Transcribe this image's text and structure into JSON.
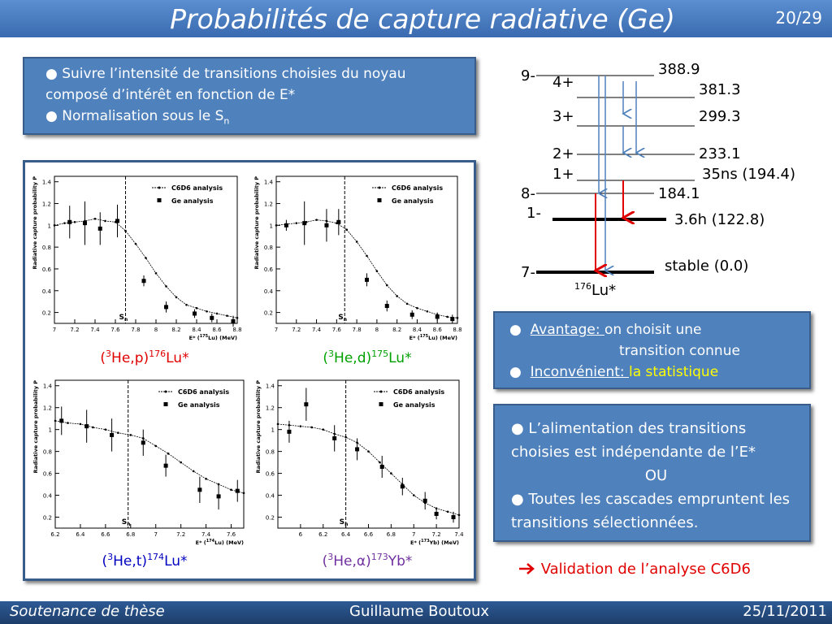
{
  "header": {
    "title": "Probabilités de capture radiative (Ge)",
    "page": "20/29"
  },
  "intro": {
    "line1": "● Suivre l’intensité de transitions choisies du noyau composé d’intérêt en fonction de E*",
    "line2": "● Normalisation sous le S",
    "line2_sub": "n"
  },
  "level_scheme": {
    "levels": [
      {
        "spin": "9-",
        "energy": "388.9"
      },
      {
        "spin": "4+",
        "energy": "381.3"
      },
      {
        "spin": "3+",
        "energy": "299.3"
      },
      {
        "spin": "2+",
        "energy": "233.1"
      },
      {
        "spin": "1+",
        "energy": "35ns (194.4)"
      },
      {
        "spin": "8-",
        "energy": "184.1"
      },
      {
        "spin": "1-",
        "energy": "3.6h (122.8)"
      },
      {
        "spin": "7-",
        "energy": "stable (0.0)"
      }
    ],
    "nucleus_mass": "176",
    "nucleus": "Lu*"
  },
  "plots": [
    {
      "reaction": {
        "open": "(",
        "mass1": "3",
        "projectile": "He,p)",
        "mass2": "176",
        "nucleus": "Lu*"
      },
      "color": "#e00000",
      "legend": [
        "C6D6 analysis",
        "Ge analysis"
      ],
      "y_label": "Radiative capture probability P",
      "x_label_pre": "E* (",
      "x_label_mass": "175",
      "x_label_post": "Lu) (MeV)",
      "sn_label": "S",
      "sn_sub": "n",
      "sn": 7.7,
      "xlim": [
        7,
        8.8
      ],
      "xticks": [
        7,
        7.2,
        7.4,
        7.6,
        7.8,
        8,
        8.2,
        8.4,
        8.6,
        8.8
      ],
      "ylim": [
        0.1,
        1.45
      ],
      "yticks": [
        0.2,
        0.4,
        0.6,
        0.8,
        1,
        1.2,
        1.4
      ],
      "c6d6": {
        "x": [
          7,
          7.1,
          7.2,
          7.3,
          7.4,
          7.5,
          7.6,
          7.7,
          7.8,
          7.9,
          8,
          8.1,
          8.2,
          8.3,
          8.4,
          8.5,
          8.6,
          8.7,
          8.8
        ],
        "values": [
          1.0,
          1.02,
          1.03,
          1.04,
          1.06,
          1.04,
          1.03,
          0.95,
          0.83,
          0.7,
          0.56,
          0.44,
          0.34,
          0.27,
          0.24,
          0.21,
          0.19,
          0.17,
          0.15
        ]
      },
      "ge": {
        "x": [
          7.15,
          7.3,
          7.45,
          7.62,
          7.88,
          8.1,
          8.38,
          8.55,
          8.76
        ],
        "values": [
          1.03,
          1.02,
          0.97,
          1.04,
          0.49,
          0.25,
          0.19,
          0.15,
          0.12
        ],
        "errors": [
          0.15,
          0.2,
          0.15,
          0.15,
          0.05,
          0.05,
          0.04,
          0.04,
          0.05
        ]
      }
    },
    {
      "reaction": {
        "open": "(",
        "mass1": "3",
        "projectile": "He,d)",
        "mass2": "175",
        "nucleus": "Lu*"
      },
      "color": "#00a000",
      "legend": [
        "C6D6 analysis",
        "Ge analysis"
      ],
      "y_label": "Radiative capture probability P",
      "x_label_pre": "E* (",
      "x_label_mass": "175",
      "x_label_post": "Lu) (MeV)",
      "sn_label": "S",
      "sn_sub": "n",
      "sn": 7.68,
      "xlim": [
        7,
        8.8
      ],
      "xticks": [
        7,
        7.2,
        7.4,
        7.6,
        7.8,
        8,
        8.2,
        8.4,
        8.6,
        8.8
      ],
      "ylim": [
        0.1,
        1.45
      ],
      "yticks": [
        0.2,
        0.4,
        0.6,
        0.8,
        1,
        1.2,
        1.4
      ],
      "c6d6": {
        "x": [
          7,
          7.1,
          7.2,
          7.3,
          7.4,
          7.5,
          7.6,
          7.7,
          7.8,
          7.9,
          8,
          8.1,
          8.2,
          8.3,
          8.4,
          8.5,
          8.6,
          8.7,
          8.8
        ],
        "values": [
          1.0,
          1.01,
          1.02,
          1.03,
          1.05,
          1.04,
          1.02,
          0.96,
          0.85,
          0.72,
          0.58,
          0.45,
          0.35,
          0.28,
          0.24,
          0.21,
          0.18,
          0.16,
          0.15
        ]
      },
      "ge": {
        "x": [
          7.1,
          7.28,
          7.5,
          7.62,
          7.9,
          8.1,
          8.35,
          8.6,
          8.75
        ],
        "values": [
          1.0,
          1.02,
          1.0,
          1.03,
          0.5,
          0.26,
          0.18,
          0.16,
          0.14
        ],
        "errors": [
          0.05,
          0.2,
          0.15,
          0.12,
          0.06,
          0.05,
          0.04,
          0.04,
          0.04
        ]
      }
    },
    {
      "reaction": {
        "open": "(",
        "mass1": "3",
        "projectile": "He,t)",
        "mass2": "174",
        "nucleus": "Lu*"
      },
      "color": "#0000c0",
      "legend": [
        "C6D6 analysis",
        "Ge analysis"
      ],
      "y_label": "Radiative capture probability P",
      "x_label_pre": "E* (",
      "x_label_mass": "174",
      "x_label_post": "Lu) (MeV)",
      "sn_label": "S",
      "sn_sub": "n",
      "sn": 6.78,
      "xlim": [
        6.2,
        7.7
      ],
      "xticks": [
        6.2,
        6.4,
        6.6,
        6.8,
        7,
        7.2,
        7.4,
        7.6
      ],
      "ylim": [
        0.1,
        1.45
      ],
      "yticks": [
        0.2,
        0.4,
        0.6,
        0.8,
        1,
        1.2,
        1.4
      ],
      "c6d6": {
        "x": [
          6.2,
          6.3,
          6.4,
          6.5,
          6.6,
          6.7,
          6.8,
          6.9,
          7,
          7.1,
          7.2,
          7.3,
          7.4,
          7.5,
          7.6,
          7.7
        ],
        "values": [
          1.08,
          1.06,
          1.05,
          1.02,
          1.0,
          0.97,
          0.95,
          0.92,
          0.85,
          0.78,
          0.7,
          0.62,
          0.55,
          0.5,
          0.45,
          0.42
        ]
      },
      "ge": {
        "x": [
          6.25,
          6.45,
          6.65,
          6.9,
          7.08,
          7.35,
          7.5,
          7.65
        ],
        "values": [
          1.08,
          1.03,
          0.95,
          0.88,
          0.67,
          0.45,
          0.39,
          0.44
        ],
        "errors": [
          0.13,
          0.15,
          0.15,
          0.12,
          0.1,
          0.12,
          0.12,
          0.1
        ]
      }
    },
    {
      "reaction": {
        "open": "(",
        "mass1": "3",
        "projectile": "He,α)",
        "mass2": "173",
        "nucleus": "Yb*"
      },
      "color": "#7030a0",
      "legend": [
        "C6D6 analysis",
        "Ge analysis"
      ],
      "y_label": "Radiative capture probability P",
      "x_label_pre": "E* (",
      "x_label_mass": "173",
      "x_label_post": "Yb) (MeV)",
      "sn_label": "S",
      "sn_sub": "n",
      "sn": 6.4,
      "xlim": [
        5.8,
        7.4
      ],
      "xticks": [
        6,
        6.2,
        6.4,
        6.6,
        6.8,
        7,
        7.2,
        7.4
      ],
      "ylim": [
        0.1,
        1.45
      ],
      "yticks": [
        0.2,
        0.4,
        0.6,
        0.8,
        1,
        1.2,
        1.4
      ],
      "c6d6": {
        "x": [
          5.8,
          5.9,
          6,
          6.1,
          6.2,
          6.3,
          6.4,
          6.5,
          6.6,
          6.7,
          6.8,
          6.9,
          7,
          7.1,
          7.2,
          7.3,
          7.4
        ],
        "values": [
          1.05,
          1.04,
          1.03,
          1.02,
          1.0,
          0.96,
          0.93,
          0.88,
          0.8,
          0.7,
          0.6,
          0.5,
          0.4,
          0.33,
          0.28,
          0.25,
          0.22
        ]
      },
      "ge": {
        "x": [
          5.9,
          6.05,
          6.3,
          6.5,
          6.72,
          6.9,
          7.1,
          7.2,
          7.35
        ],
        "values": [
          0.98,
          1.23,
          0.92,
          0.82,
          0.66,
          0.48,
          0.35,
          0.23,
          0.2
        ],
        "errors": [
          0.1,
          0.15,
          0.12,
          0.1,
          0.1,
          0.08,
          0.08,
          0.05,
          0.05
        ]
      }
    }
  ],
  "advantage": {
    "bullet1": "●",
    "label1": "Avantage: ",
    "text1a": "on choisit une",
    "text1b": "transition connue",
    "bullet2": "●",
    "label2": "Inconvénient: ",
    "text2": "la statistique"
  },
  "feeding": {
    "line1": "● L’alimentation des transitions choisies est indépendante de l’E*",
    "line2": "OU",
    "line3": "● Toutes les cascades empruntent les transitions sélectionnées."
  },
  "conclusion": "Validation de l’analyse C6D6",
  "footer": {
    "left": "Soutenance de thèse",
    "center": "Guillaume Boutoux",
    "right": "25/11/2011"
  }
}
